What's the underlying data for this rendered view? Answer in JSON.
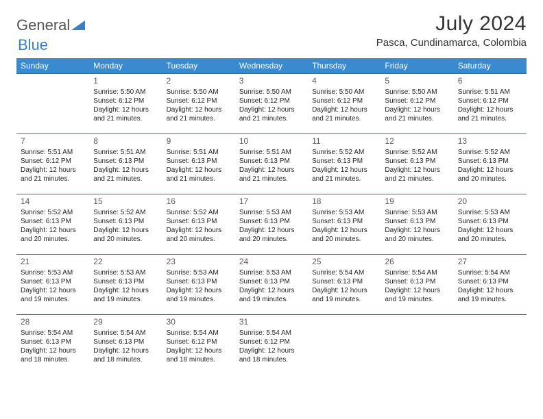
{
  "logo": {
    "text1": "General",
    "text2": "Blue"
  },
  "title": "July 2024",
  "location": "Pasca, Cundinamarca, Colombia",
  "header_bg": "#3a8ad0",
  "rule_color": "#2b6aa8",
  "weekdays": [
    "Sunday",
    "Monday",
    "Tuesday",
    "Wednesday",
    "Thursday",
    "Friday",
    "Saturday"
  ],
  "weeks": [
    [
      null,
      {
        "d": "1",
        "sr": "5:50 AM",
        "ss": "6:12 PM",
        "dl": "12 hours and 21 minutes."
      },
      {
        "d": "2",
        "sr": "5:50 AM",
        "ss": "6:12 PM",
        "dl": "12 hours and 21 minutes."
      },
      {
        "d": "3",
        "sr": "5:50 AM",
        "ss": "6:12 PM",
        "dl": "12 hours and 21 minutes."
      },
      {
        "d": "4",
        "sr": "5:50 AM",
        "ss": "6:12 PM",
        "dl": "12 hours and 21 minutes."
      },
      {
        "d": "5",
        "sr": "5:50 AM",
        "ss": "6:12 PM",
        "dl": "12 hours and 21 minutes."
      },
      {
        "d": "6",
        "sr": "5:51 AM",
        "ss": "6:12 PM",
        "dl": "12 hours and 21 minutes."
      }
    ],
    [
      {
        "d": "7",
        "sr": "5:51 AM",
        "ss": "6:12 PM",
        "dl": "12 hours and 21 minutes."
      },
      {
        "d": "8",
        "sr": "5:51 AM",
        "ss": "6:13 PM",
        "dl": "12 hours and 21 minutes."
      },
      {
        "d": "9",
        "sr": "5:51 AM",
        "ss": "6:13 PM",
        "dl": "12 hours and 21 minutes."
      },
      {
        "d": "10",
        "sr": "5:51 AM",
        "ss": "6:13 PM",
        "dl": "12 hours and 21 minutes."
      },
      {
        "d": "11",
        "sr": "5:52 AM",
        "ss": "6:13 PM",
        "dl": "12 hours and 21 minutes."
      },
      {
        "d": "12",
        "sr": "5:52 AM",
        "ss": "6:13 PM",
        "dl": "12 hours and 21 minutes."
      },
      {
        "d": "13",
        "sr": "5:52 AM",
        "ss": "6:13 PM",
        "dl": "12 hours and 20 minutes."
      }
    ],
    [
      {
        "d": "14",
        "sr": "5:52 AM",
        "ss": "6:13 PM",
        "dl": "12 hours and 20 minutes."
      },
      {
        "d": "15",
        "sr": "5:52 AM",
        "ss": "6:13 PM",
        "dl": "12 hours and 20 minutes."
      },
      {
        "d": "16",
        "sr": "5:52 AM",
        "ss": "6:13 PM",
        "dl": "12 hours and 20 minutes."
      },
      {
        "d": "17",
        "sr": "5:53 AM",
        "ss": "6:13 PM",
        "dl": "12 hours and 20 minutes."
      },
      {
        "d": "18",
        "sr": "5:53 AM",
        "ss": "6:13 PM",
        "dl": "12 hours and 20 minutes."
      },
      {
        "d": "19",
        "sr": "5:53 AM",
        "ss": "6:13 PM",
        "dl": "12 hours and 20 minutes."
      },
      {
        "d": "20",
        "sr": "5:53 AM",
        "ss": "6:13 PM",
        "dl": "12 hours and 20 minutes."
      }
    ],
    [
      {
        "d": "21",
        "sr": "5:53 AM",
        "ss": "6:13 PM",
        "dl": "12 hours and 19 minutes."
      },
      {
        "d": "22",
        "sr": "5:53 AM",
        "ss": "6:13 PM",
        "dl": "12 hours and 19 minutes."
      },
      {
        "d": "23",
        "sr": "5:53 AM",
        "ss": "6:13 PM",
        "dl": "12 hours and 19 minutes."
      },
      {
        "d": "24",
        "sr": "5:53 AM",
        "ss": "6:13 PM",
        "dl": "12 hours and 19 minutes."
      },
      {
        "d": "25",
        "sr": "5:54 AM",
        "ss": "6:13 PM",
        "dl": "12 hours and 19 minutes."
      },
      {
        "d": "26",
        "sr": "5:54 AM",
        "ss": "6:13 PM",
        "dl": "12 hours and 19 minutes."
      },
      {
        "d": "27",
        "sr": "5:54 AM",
        "ss": "6:13 PM",
        "dl": "12 hours and 19 minutes."
      }
    ],
    [
      {
        "d": "28",
        "sr": "5:54 AM",
        "ss": "6:13 PM",
        "dl": "12 hours and 18 minutes."
      },
      {
        "d": "29",
        "sr": "5:54 AM",
        "ss": "6:13 PM",
        "dl": "12 hours and 18 minutes."
      },
      {
        "d": "30",
        "sr": "5:54 AM",
        "ss": "6:12 PM",
        "dl": "12 hours and 18 minutes."
      },
      {
        "d": "31",
        "sr": "5:54 AM",
        "ss": "6:12 PM",
        "dl": "12 hours and 18 minutes."
      },
      null,
      null,
      null
    ]
  ],
  "labels": {
    "sunrise": "Sunrise:",
    "sunset": "Sunset:",
    "daylight": "Daylight:"
  }
}
